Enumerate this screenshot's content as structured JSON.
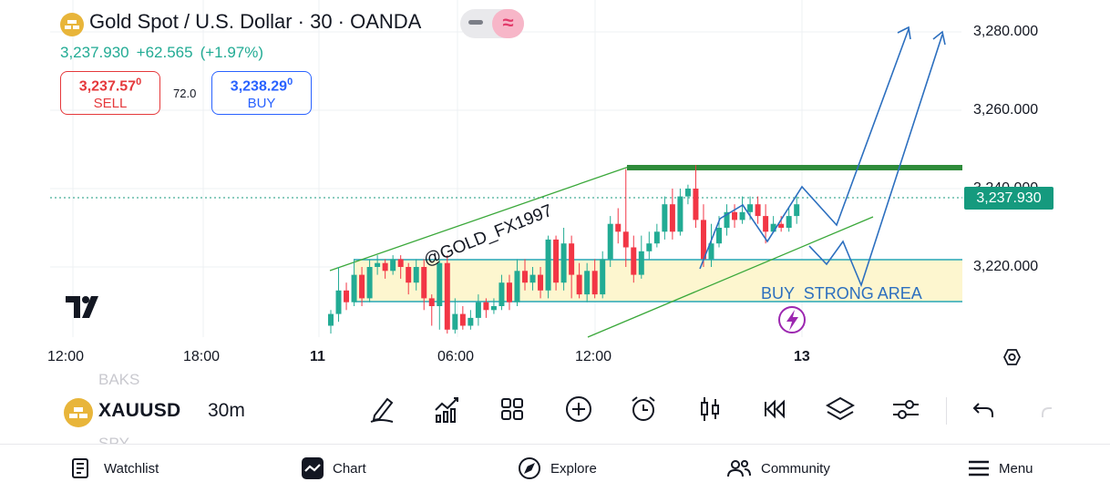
{
  "header": {
    "title": "Gold Spot / U.S. Dollar · 30 · OANDA",
    "last_price": "3,237.930",
    "change": "+62.565",
    "change_pct": "(+1.97%)",
    "sell_price": "3,237.57",
    "sell_price_small": "0",
    "sell_label": "SELL",
    "spread": "72.0",
    "buy_price": "3,238.29",
    "buy_price_small": "0",
    "buy_label": "BUY",
    "toggle_icon_right": "≈"
  },
  "chart": {
    "price_axis": [
      "3,280.000",
      "3,260.000",
      "3,240.000",
      "3,220.000"
    ],
    "current_price_tag": "3,237.930",
    "time_axis": [
      "12:00",
      "18:00",
      "11",
      "06:00",
      "12:00",
      "13"
    ],
    "watermark_text": "@GOLD_FX1997",
    "zone_label": "BUY  STRONG AREA",
    "colors": {
      "up": "#22ab94",
      "down": "#f23645",
      "resistance": "#2e8b3a",
      "channel": "#3aa83a",
      "arrow": "#2c6fbf",
      "zone": "#fdf6cf"
    }
  },
  "chart_data": {
    "type": "candlestick",
    "ylim": [
      3204,
      3284
    ],
    "candles": [
      [
        3205,
        3208,
        3203,
        3209
      ],
      [
        3208,
        3214,
        3206,
        3220
      ],
      [
        3214,
        3211,
        3209,
        3216
      ],
      [
        3211,
        3218,
        3210,
        3222
      ],
      [
        3218,
        3212,
        3210,
        3220
      ],
      [
        3212,
        3220,
        3211,
        3222
      ],
      [
        3220,
        3221,
        3218,
        3223
      ],
      [
        3221,
        3219,
        3217,
        3222
      ],
      [
        3219,
        3222,
        3218,
        3223
      ],
      [
        3222,
        3220,
        3217,
        3223
      ],
      [
        3220,
        3216,
        3213,
        3221
      ],
      [
        3216,
        3220,
        3214,
        3222
      ],
      [
        3220,
        3212,
        3209,
        3222
      ],
      [
        3212,
        3210,
        3205,
        3213
      ],
      [
        3210,
        3221,
        3204,
        3222
      ],
      [
        3221,
        3204,
        3203,
        3223
      ],
      [
        3204,
        3208,
        3203,
        3212
      ],
      [
        3208,
        3205,
        3204,
        3210
      ],
      [
        3205,
        3207,
        3204,
        3209
      ],
      [
        3207,
        3211,
        3205,
        3213
      ],
      [
        3211,
        3209,
        3207,
        3212
      ],
      [
        3209,
        3210,
        3208,
        3212
      ],
      [
        3210,
        3216,
        3209,
        3218
      ],
      [
        3216,
        3211,
        3209,
        3218
      ],
      [
        3211,
        3219,
        3210,
        3222
      ],
      [
        3219,
        3216,
        3214,
        3222
      ],
      [
        3216,
        3218,
        3214,
        3220
      ],
      [
        3218,
        3214,
        3212,
        3220
      ],
      [
        3214,
        3227,
        3212,
        3228
      ],
      [
        3227,
        3216,
        3214,
        3228
      ],
      [
        3216,
        3226,
        3214,
        3230
      ],
      [
        3226,
        3218,
        3212,
        3228
      ],
      [
        3218,
        3213,
        3212,
        3221
      ],
      [
        3213,
        3219,
        3211,
        3221
      ],
      [
        3219,
        3213,
        3212,
        3222
      ],
      [
        3213,
        3222,
        3212,
        3224
      ],
      [
        3222,
        3231,
        3220,
        3233
      ],
      [
        3231,
        3229,
        3226,
        3235
      ],
      [
        3229,
        3225,
        3220,
        3245
      ],
      [
        3225,
        3218,
        3216,
        3228
      ],
      [
        3218,
        3224,
        3217,
        3228
      ],
      [
        3224,
        3226,
        3222,
        3229
      ],
      [
        3226,
        3229,
        3225,
        3231
      ],
      [
        3229,
        3236,
        3227,
        3238
      ],
      [
        3236,
        3229,
        3227,
        3240
      ],
      [
        3229,
        3238,
        3228,
        3240
      ],
      [
        3238,
        3240,
        3236,
        3241
      ],
      [
        3240,
        3232,
        3230,
        3246
      ],
      [
        3232,
        3222,
        3220,
        3236
      ],
      [
        3222,
        3226,
        3220,
        3231
      ],
      [
        3226,
        3230,
        3225,
        3233
      ],
      [
        3230,
        3234,
        3228,
        3236
      ],
      [
        3234,
        3232,
        3230,
        3236
      ],
      [
        3232,
        3234,
        3231,
        3238
      ],
      [
        3234,
        3236,
        3232,
        3238
      ],
      [
        3236,
        3233,
        3231,
        3238
      ],
      [
        3233,
        3229,
        3226,
        3236
      ],
      [
        3229,
        3231,
        3229,
        3233
      ],
      [
        3231,
        3230,
        3229,
        3233
      ],
      [
        3230,
        3233,
        3229,
        3235
      ],
      [
        3233,
        3236,
        3231,
        3238
      ]
    ]
  },
  "toolbar": {
    "faded_above": "BAKS",
    "symbol": "XAUUSD",
    "faded_below": "SPY",
    "timeframe": "30m"
  },
  "bottom_nav": {
    "watchlist": "Watchlist",
    "chart": "Chart",
    "explore": "Explore",
    "community": "Community",
    "menu": "Menu"
  }
}
